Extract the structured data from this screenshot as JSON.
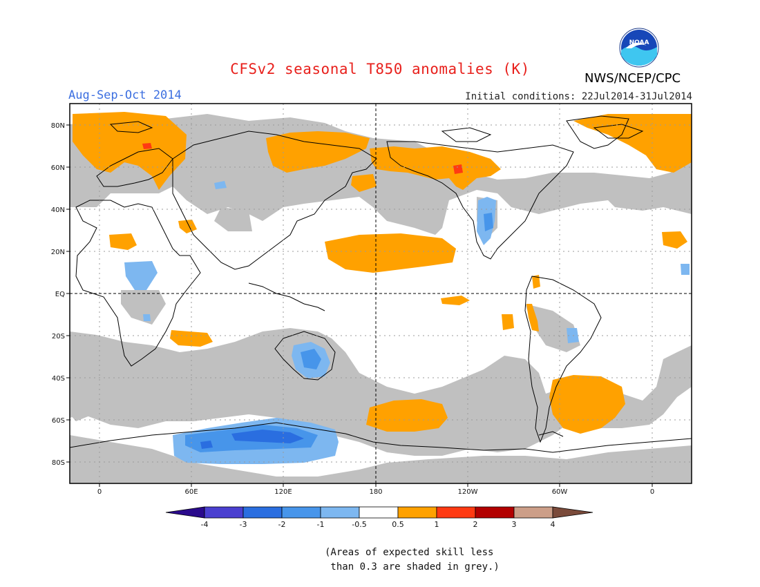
{
  "header": {
    "title": "CFSv2 seasonal T850 anomalies (K)",
    "season": "Aug-Sep-Oct 2014",
    "initial_conditions": "Initial conditions: 22Jul2014-31Jul2014",
    "agency": "NWS/NCEP/CPC",
    "logo_text": "NOAA"
  },
  "axes": {
    "x_ticks": [
      "0",
      "60E",
      "120E",
      "180",
      "120W",
      "60W",
      "0"
    ],
    "y_ticks": [
      "80N",
      "60N",
      "40N",
      "20N",
      "EQ",
      "20S",
      "40S",
      "60S",
      "80S"
    ]
  },
  "colorbar": {
    "labels": [
      "-4",
      "-3",
      "-2",
      "-1",
      "-0.5",
      "0.5",
      "1",
      "2",
      "3",
      "4"
    ],
    "colors": [
      "#2a0a8c",
      "#4a3fd0",
      "#2a6ee0",
      "#4795ea",
      "#7db7f0",
      "#ffffff",
      "#ffa100",
      "#ff3a12",
      "#b20000",
      "#cc9e88",
      "#7a4a3a"
    ]
  },
  "shading": {
    "grey": "#c0c0c0",
    "orange": "#ffa100",
    "light_blue": "#7db7f0",
    "blue": "#4795ea",
    "dark_blue": "#2a6ee0",
    "red": "#ff3a12"
  },
  "footnote": {
    "line1": "(Areas of expected skill less",
    "line2": " than 0.3 are shaded in grey.)"
  }
}
